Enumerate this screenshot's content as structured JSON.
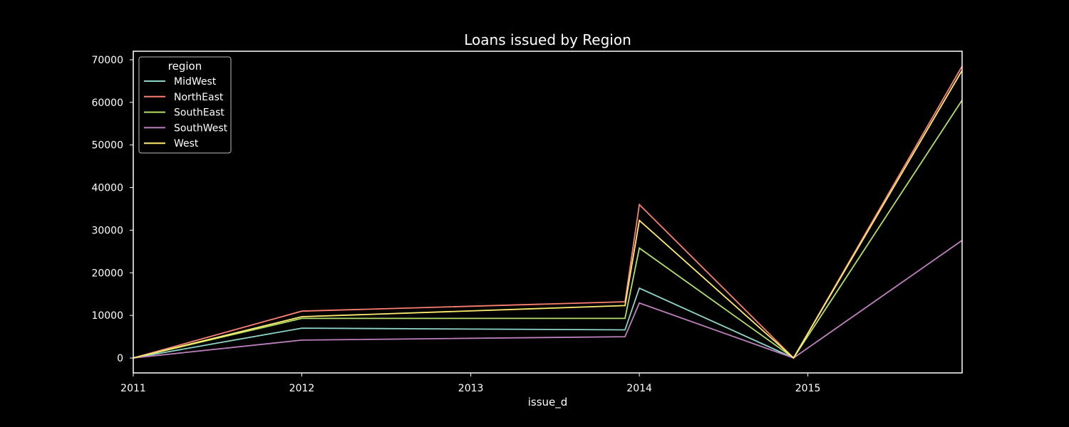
{
  "chart_data": {
    "type": "line",
    "title": "Loans issued by Region",
    "xlabel": "issue_d",
    "ylabel": "",
    "x_ticks": [
      "2011",
      "2012",
      "2013",
      "2014",
      "2015"
    ],
    "y_ticks": [
      "0",
      "10000",
      "20000",
      "30000",
      "40000",
      "50000",
      "60000",
      "70000"
    ],
    "xlim": [
      "2011-01-01",
      "2015-12-01"
    ],
    "ylim": [
      -3500,
      72000
    ],
    "grid": false,
    "legend": {
      "title": "region",
      "placement": "top-left"
    },
    "x": [
      "2011-01-01",
      "2012-01-01",
      "2013-12-01",
      "2014-01-01",
      "2014-12-01",
      "2015-12-01"
    ],
    "series": [
      {
        "name": "MidWest",
        "color": "#8dd3c7",
        "values": [
          0,
          7000,
          6600,
          16400,
          0,
          null
        ]
      },
      {
        "name": "NorthEast",
        "color": "#fb8072",
        "values": [
          0,
          11000,
          13200,
          36000,
          0,
          68500
        ]
      },
      {
        "name": "SouthEast",
        "color": "#b3de69",
        "values": [
          0,
          9300,
          9300,
          25800,
          0,
          60500
        ]
      },
      {
        "name": "SouthWest",
        "color": "#bc80bd",
        "values": [
          0,
          4200,
          5000,
          12900,
          0,
          27600
        ]
      },
      {
        "name": "West",
        "color": "#ffed6f",
        "values": [
          0,
          9700,
          12300,
          32300,
          0,
          67500
        ]
      }
    ]
  }
}
